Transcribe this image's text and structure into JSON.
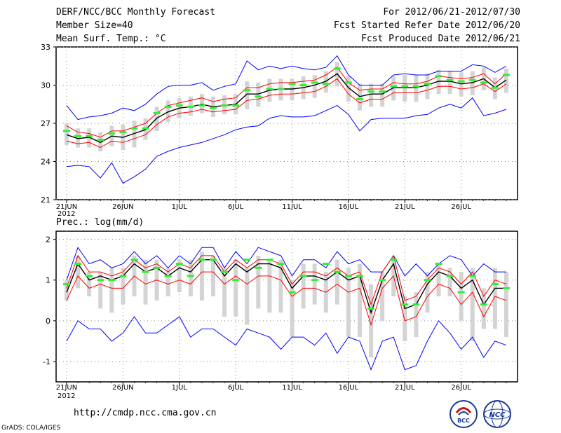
{
  "header": {
    "title": "DERF/NCC/BCC Monthly Forecast",
    "member_size": "Member Size=40",
    "variable": "Mean Surf. Temp.: °C",
    "period": "For 2012/06/21-2012/07/30",
    "fcst_started": "Fcst Started Refer Date 2012/06/20",
    "fcst_produced": "Fcst Produced Date 2012/06/21"
  },
  "footer": {
    "url": "http://cmdp.ncc.cma.gov.cn",
    "credit": "GrADS: COLA/IGES",
    "logo_bcc": "BCC",
    "logo_ncc": "NCC"
  },
  "colors": {
    "ensemble_mean": "#000000",
    "spread": "#ff0000",
    "range": "#0000ff",
    "member_box": "#d4d4d4",
    "median": "#33ee33"
  },
  "chart_data": [
    {
      "type": "line",
      "title": "Mean Surf. Temp.: °C",
      "ylim": [
        21,
        33
      ],
      "yticks": [
        21,
        24,
        27,
        30,
        33
      ],
      "x": [
        1,
        2,
        3,
        4,
        5,
        6,
        7,
        8,
        9,
        10,
        11,
        12,
        13,
        14,
        15,
        16,
        17,
        18,
        19,
        20,
        21,
        22,
        23,
        24,
        25,
        26,
        27,
        28,
        29,
        30,
        31,
        32,
        33,
        34,
        35,
        36,
        37,
        38,
        39,
        40
      ],
      "xtick_positions": [
        1,
        6,
        11,
        16,
        21,
        26,
        31,
        36
      ],
      "xtick_labels": [
        "21JUN",
        "26JUN",
        "1JUL",
        "6JUL",
        "11JUL",
        "16JUL",
        "21JUL",
        "26JUL"
      ],
      "year_label": "2012",
      "series": [
        {
          "name": "max",
          "color": "#0000ff",
          "values": [
            28.4,
            27.3,
            27.5,
            27.6,
            27.8,
            28.2,
            28.0,
            28.5,
            29.3,
            29.9,
            30.0,
            30.0,
            30.2,
            29.6,
            29.9,
            30.1,
            31.9,
            31.2,
            31.5,
            31.3,
            31.5,
            31.3,
            31.2,
            31.4,
            32.3,
            30.8,
            30.0,
            30.0,
            30.0,
            30.8,
            30.9,
            30.8,
            30.8,
            31.1,
            31.1,
            31.1,
            31.6,
            31.5,
            31.0,
            31.5
          ]
        },
        {
          "name": "spread_upper",
          "color": "#ff0000",
          "values": [
            26.8,
            26.3,
            26.2,
            25.9,
            26.4,
            26.4,
            26.7,
            27.0,
            27.8,
            28.4,
            28.6,
            28.8,
            29.0,
            28.7,
            28.9,
            29.0,
            29.8,
            29.8,
            30.1,
            30.2,
            30.2,
            30.3,
            30.4,
            30.8,
            31.4,
            30.2,
            29.6,
            29.7,
            29.7,
            30.2,
            30.1,
            30.1,
            30.3,
            30.7,
            30.6,
            30.5,
            30.6,
            30.9,
            30.1,
            30.9
          ]
        },
        {
          "name": "ensemble_mean",
          "color": "#000000",
          "values": [
            26.1,
            25.8,
            25.9,
            25.5,
            26.0,
            25.9,
            26.2,
            26.5,
            27.4,
            27.9,
            28.2,
            28.3,
            28.5,
            28.3,
            28.4,
            28.5,
            29.3,
            29.3,
            29.6,
            29.7,
            29.7,
            29.8,
            30.0,
            30.3,
            30.9,
            29.8,
            29.1,
            29.3,
            29.3,
            29.8,
            29.8,
            29.8,
            30.0,
            30.3,
            30.3,
            30.1,
            30.2,
            30.5,
            29.8,
            30.4
          ]
        },
        {
          "name": "spread_lower",
          "color": "#ff0000",
          "values": [
            25.6,
            25.4,
            25.5,
            25.1,
            25.6,
            25.5,
            25.8,
            26.1,
            26.9,
            27.5,
            27.8,
            27.9,
            28.1,
            27.9,
            28.0,
            28.1,
            28.8,
            28.9,
            29.2,
            29.3,
            29.3,
            29.4,
            29.5,
            29.9,
            30.5,
            29.3,
            28.6,
            28.9,
            28.9,
            29.4,
            29.4,
            29.4,
            29.6,
            29.9,
            29.9,
            29.7,
            29.8,
            30.1,
            29.5,
            30.1
          ]
        },
        {
          "name": "min",
          "color": "#0000ff",
          "values": [
            23.6,
            23.7,
            23.6,
            22.7,
            23.9,
            22.3,
            22.8,
            23.4,
            24.4,
            24.8,
            25.1,
            25.3,
            25.5,
            25.8,
            26.1,
            26.5,
            26.7,
            26.8,
            27.4,
            27.6,
            27.5,
            27.5,
            27.6,
            28.0,
            28.4,
            27.7,
            26.4,
            27.3,
            27.4,
            27.4,
            27.4,
            27.6,
            27.7,
            28.2,
            28.5,
            28.2,
            29.0,
            27.6,
            27.8,
            28.1
          ]
        }
      ],
      "boxes": {
        "color": "#d4d4d4",
        "low": [
          25.3,
          25.1,
          25.1,
          24.8,
          25.2,
          24.9,
          25.1,
          25.7,
          26.4,
          27.1,
          27.4,
          27.6,
          27.8,
          27.5,
          27.7,
          27.7,
          28.1,
          28.3,
          28.7,
          28.8,
          28.8,
          28.9,
          29.0,
          29.4,
          29.9,
          28.7,
          28.0,
          28.3,
          28.3,
          28.8,
          28.7,
          28.7,
          28.9,
          29.3,
          29.3,
          29.1,
          29.2,
          29.6,
          28.9,
          29.4
        ],
        "high": [
          27.0,
          26.6,
          26.6,
          26.3,
          26.8,
          26.9,
          27.2,
          27.4,
          28.3,
          28.8,
          29.0,
          29.1,
          29.3,
          29.1,
          29.2,
          29.3,
          30.3,
          30.2,
          30.5,
          30.5,
          30.5,
          30.7,
          30.8,
          31.1,
          31.8,
          30.7,
          30.1,
          30.1,
          30.1,
          30.7,
          30.8,
          30.8,
          30.9,
          31.2,
          31.1,
          31.0,
          31.1,
          31.4,
          30.6,
          31.3
        ]
      },
      "medians": {
        "color": "#33ee33",
        "values": [
          26.4,
          26.0,
          26.0,
          25.7,
          26.2,
          26.3,
          26.6,
          26.6,
          27.8,
          28.3,
          28.4,
          28.3,
          28.4,
          28.2,
          28.4,
          28.4,
          29.6,
          29.1,
          29.7,
          29.7,
          30.1,
          30.0,
          30.2,
          30.1,
          31.3,
          30.2,
          28.9,
          29.5,
          29.5,
          29.9,
          29.9,
          29.9,
          30.1,
          30.7,
          30.4,
          30.3,
          30.4,
          30.2,
          29.8,
          30.8
        ]
      }
    },
    {
      "type": "line",
      "title": "Prec.: log(mm/d)",
      "ylim": [
        -1.5,
        2.2
      ],
      "yticks": [
        -1,
        0,
        1,
        2
      ],
      "x": [
        1,
        2,
        3,
        4,
        5,
        6,
        7,
        8,
        9,
        10,
        11,
        12,
        13,
        14,
        15,
        16,
        17,
        18,
        19,
        20,
        21,
        22,
        23,
        24,
        25,
        26,
        27,
        28,
        29,
        30,
        31,
        32,
        33,
        34,
        35,
        36,
        37,
        38,
        39,
        40
      ],
      "xtick_positions": [
        1,
        6,
        11,
        16,
        21,
        26,
        31,
        36
      ],
      "xtick_labels": [
        "21JUN",
        "26JUN",
        "1JUL",
        "6JUL",
        "11JUL",
        "16JUL",
        "21JUL",
        "26JUL"
      ],
      "year_label": "2012",
      "series": [
        {
          "name": "max",
          "color": "#0000ff",
          "values": [
            1.0,
            1.8,
            1.4,
            1.5,
            1.3,
            1.4,
            1.7,
            1.4,
            1.6,
            1.3,
            1.6,
            1.4,
            1.8,
            1.8,
            1.3,
            1.7,
            1.4,
            1.8,
            1.7,
            1.6,
            1.1,
            1.5,
            1.5,
            1.3,
            1.7,
            1.4,
            1.5,
            1.2,
            1.2,
            1.6,
            1.1,
            1.4,
            1.1,
            1.4,
            1.6,
            1.5,
            1.1,
            1.4,
            1.2,
            1.2
          ]
        },
        {
          "name": "spread_upper",
          "color": "#ff0000",
          "values": [
            0.8,
            1.6,
            1.2,
            1.2,
            1.1,
            1.2,
            1.5,
            1.3,
            1.4,
            1.2,
            1.4,
            1.3,
            1.6,
            1.6,
            1.2,
            1.5,
            1.3,
            1.5,
            1.5,
            1.4,
            0.9,
            1.2,
            1.2,
            1.1,
            1.3,
            1.1,
            1.2,
            0.4,
            1.2,
            1.6,
            0.5,
            0.6,
            1.0,
            1.3,
            1.2,
            0.9,
            1.2,
            0.6,
            1.0,
            0.9
          ]
        },
        {
          "name": "ensemble_mean",
          "color": "#000000",
          "values": [
            0.7,
            1.4,
            1.0,
            1.1,
            1.0,
            1.1,
            1.4,
            1.2,
            1.3,
            1.1,
            1.3,
            1.2,
            1.5,
            1.5,
            1.1,
            1.4,
            1.2,
            1.4,
            1.4,
            1.3,
            0.8,
            1.1,
            1.1,
            1.0,
            1.2,
            1.0,
            1.1,
            0.2,
            1.0,
            1.4,
            0.3,
            0.4,
            0.9,
            1.2,
            1.1,
            0.8,
            1.0,
            0.4,
            0.8,
            0.8
          ]
        },
        {
          "name": "spread_lower",
          "color": "#ff0000",
          "values": [
            0.5,
            1.1,
            0.8,
            0.9,
            0.8,
            0.8,
            1.1,
            0.9,
            1.0,
            0.9,
            1.0,
            0.9,
            1.2,
            1.2,
            0.9,
            1.1,
            0.9,
            1.1,
            1.1,
            1.0,
            0.6,
            0.8,
            0.8,
            0.7,
            0.9,
            0.7,
            0.8,
            -0.1,
            0.8,
            1.1,
            0.0,
            0.1,
            0.6,
            0.9,
            0.8,
            0.4,
            0.7,
            0.1,
            0.6,
            0.5
          ]
        },
        {
          "name": "min",
          "color": "#0000ff",
          "values": [
            -0.5,
            0.0,
            -0.2,
            -0.2,
            -0.5,
            -0.3,
            0.1,
            -0.3,
            -0.3,
            -0.1,
            0.1,
            -0.4,
            -0.2,
            -0.2,
            -0.4,
            -0.6,
            -0.2,
            -0.3,
            -0.4,
            -0.7,
            -0.4,
            -0.4,
            -0.6,
            -0.3,
            -0.8,
            -0.4,
            -0.5,
            -1.2,
            -0.5,
            -0.4,
            -1.2,
            -1.1,
            -0.5,
            0.0,
            -0.3,
            -0.7,
            -0.4,
            -0.9,
            -0.5,
            -0.6
          ]
        }
      ],
      "boxes": {
        "color": "#d4d4d4",
        "low": [
          0.5,
          0.8,
          0.6,
          0.3,
          0.2,
          0.4,
          0.6,
          0.4,
          0.5,
          0.6,
          0.7,
          0.6,
          0.5,
          0.6,
          0.1,
          0.1,
          -0.1,
          0.3,
          0.2,
          0.2,
          -0.4,
          0.3,
          0.4,
          0.2,
          0.4,
          -0.4,
          -0.4,
          -0.9,
          0.0,
          0.6,
          -0.5,
          -0.4,
          0.2,
          0.6,
          0.6,
          0.0,
          -0.5,
          -0.2,
          -0.2,
          -0.4
        ],
        "high": [
          1.0,
          1.6,
          1.2,
          1.2,
          1.3,
          1.3,
          1.6,
          1.5,
          1.5,
          1.3,
          1.5,
          1.5,
          1.7,
          1.6,
          1.3,
          1.5,
          1.3,
          1.6,
          1.5,
          1.5,
          1.0,
          1.4,
          1.4,
          1.2,
          1.5,
          1.3,
          1.4,
          0.9,
          1.2,
          1.6,
          0.6,
          0.7,
          1.2,
          1.4,
          1.3,
          1.2,
          1.3,
          0.8,
          1.3,
          1.2
        ]
      },
      "medians": {
        "color": "#33ee33",
        "values": [
          0.9,
          1.4,
          1.1,
          1.0,
          1.0,
          1.1,
          1.5,
          1.2,
          1.3,
          1.1,
          1.4,
          1.1,
          1.5,
          1.5,
          1.2,
          1.0,
          1.5,
          1.3,
          1.5,
          1.4,
          0.7,
          1.1,
          1.0,
          1.4,
          1.2,
          1.1,
          1.1,
          0.3,
          1.0,
          1.5,
          0.4,
          0.4,
          1.0,
          1.4,
          1.1,
          0.7,
          1.1,
          0.4,
          0.9,
          0.8
        ]
      }
    }
  ]
}
